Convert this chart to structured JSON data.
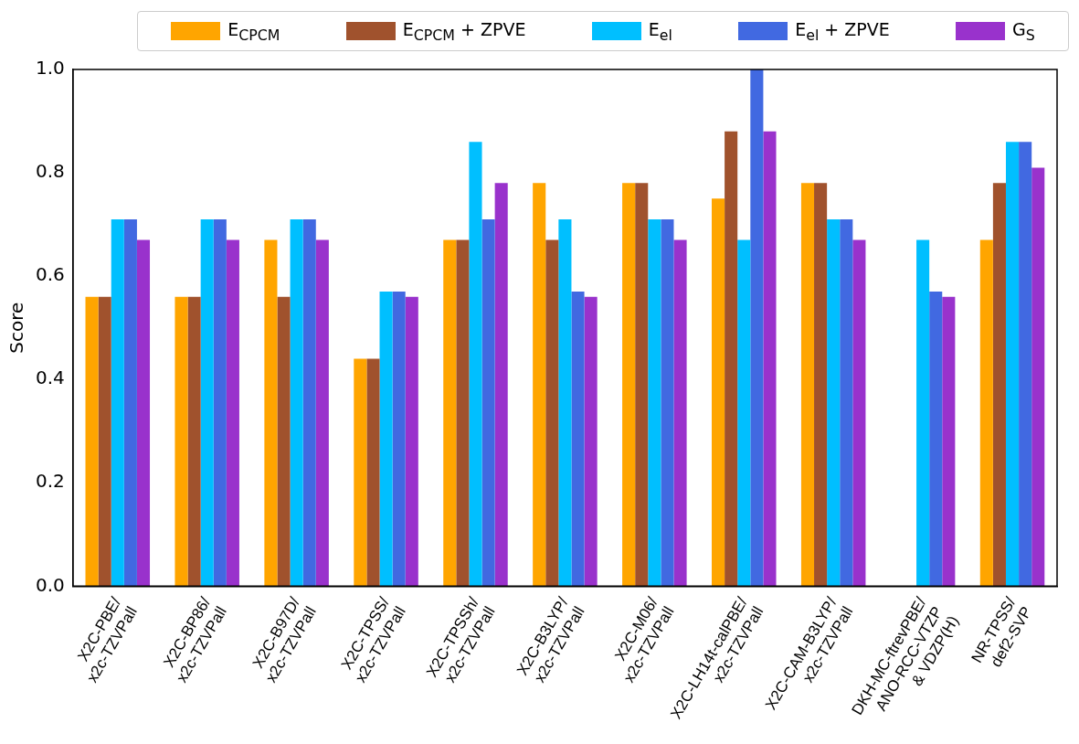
{
  "chart_data": {
    "type": "bar",
    "ylabel": "Score",
    "categories": [
      "X2C-PBE/\nx2c-TZVPall",
      "X2C-BP86/\nx2c-TZVPall",
      "X2C-B97D/\nx2c-TZVPall",
      "X2C-TPSS/\nx2c-TZVPall",
      "X2C-TPSSh/\nx2c-TZVPall",
      "X2C-B3LYP/\nx2c-TZVPall",
      "X2C-M06/\nx2c-TZVPall",
      "X2C-LH14t-calPBE/\nx2c-TZVPall",
      "X2C-CAM-B3LYP/\nx2c-TZVPall",
      "DKH-MC-ftrevPBE/\nANO-RCC-VTZP\n& VDZP(H)",
      "NR-TPSS/\ndef2-SVP"
    ],
    "series": [
      {
        "name": "E$_{CPCM}$",
        "color": "#ffa500",
        "values": [
          0.56,
          0.56,
          0.67,
          0.44,
          0.67,
          0.78,
          0.78,
          0.75,
          0.78,
          null,
          0.67
        ]
      },
      {
        "name": "E$_{CPCM}$ + ZPVE",
        "color": "#a0522d",
        "values": [
          0.56,
          0.56,
          0.56,
          0.44,
          0.67,
          0.67,
          0.78,
          0.88,
          0.78,
          null,
          0.78
        ]
      },
      {
        "name": "E$_{el}$",
        "color": "#00bfff",
        "values": [
          0.71,
          0.71,
          0.71,
          0.57,
          0.86,
          0.71,
          0.71,
          0.67,
          0.71,
          0.67,
          0.86
        ]
      },
      {
        "name": "E$_{el}$ + ZPVE",
        "color": "#4169e1",
        "values": [
          0.71,
          0.71,
          0.71,
          0.57,
          0.71,
          0.57,
          0.71,
          1.0,
          0.71,
          0.57,
          0.86
        ]
      },
      {
        "name": "G$_{S}$",
        "color": "#9932cc",
        "values": [
          0.67,
          0.67,
          0.67,
          0.56,
          0.78,
          0.56,
          0.67,
          0.88,
          0.67,
          0.56,
          0.81
        ]
      }
    ],
    "ylim": [
      0,
      1
    ],
    "yticks": [
      {
        "value": 0,
        "label": "0.0"
      },
      {
        "value": 0.2,
        "label": "0.2"
      },
      {
        "value": 0.4,
        "label": "0.4"
      },
      {
        "value": 0.6,
        "label": "0.6"
      },
      {
        "value": 0.8,
        "label": "0.8"
      },
      {
        "value": 1,
        "label": "1.0"
      }
    ],
    "grid": false,
    "legend": "top"
  }
}
